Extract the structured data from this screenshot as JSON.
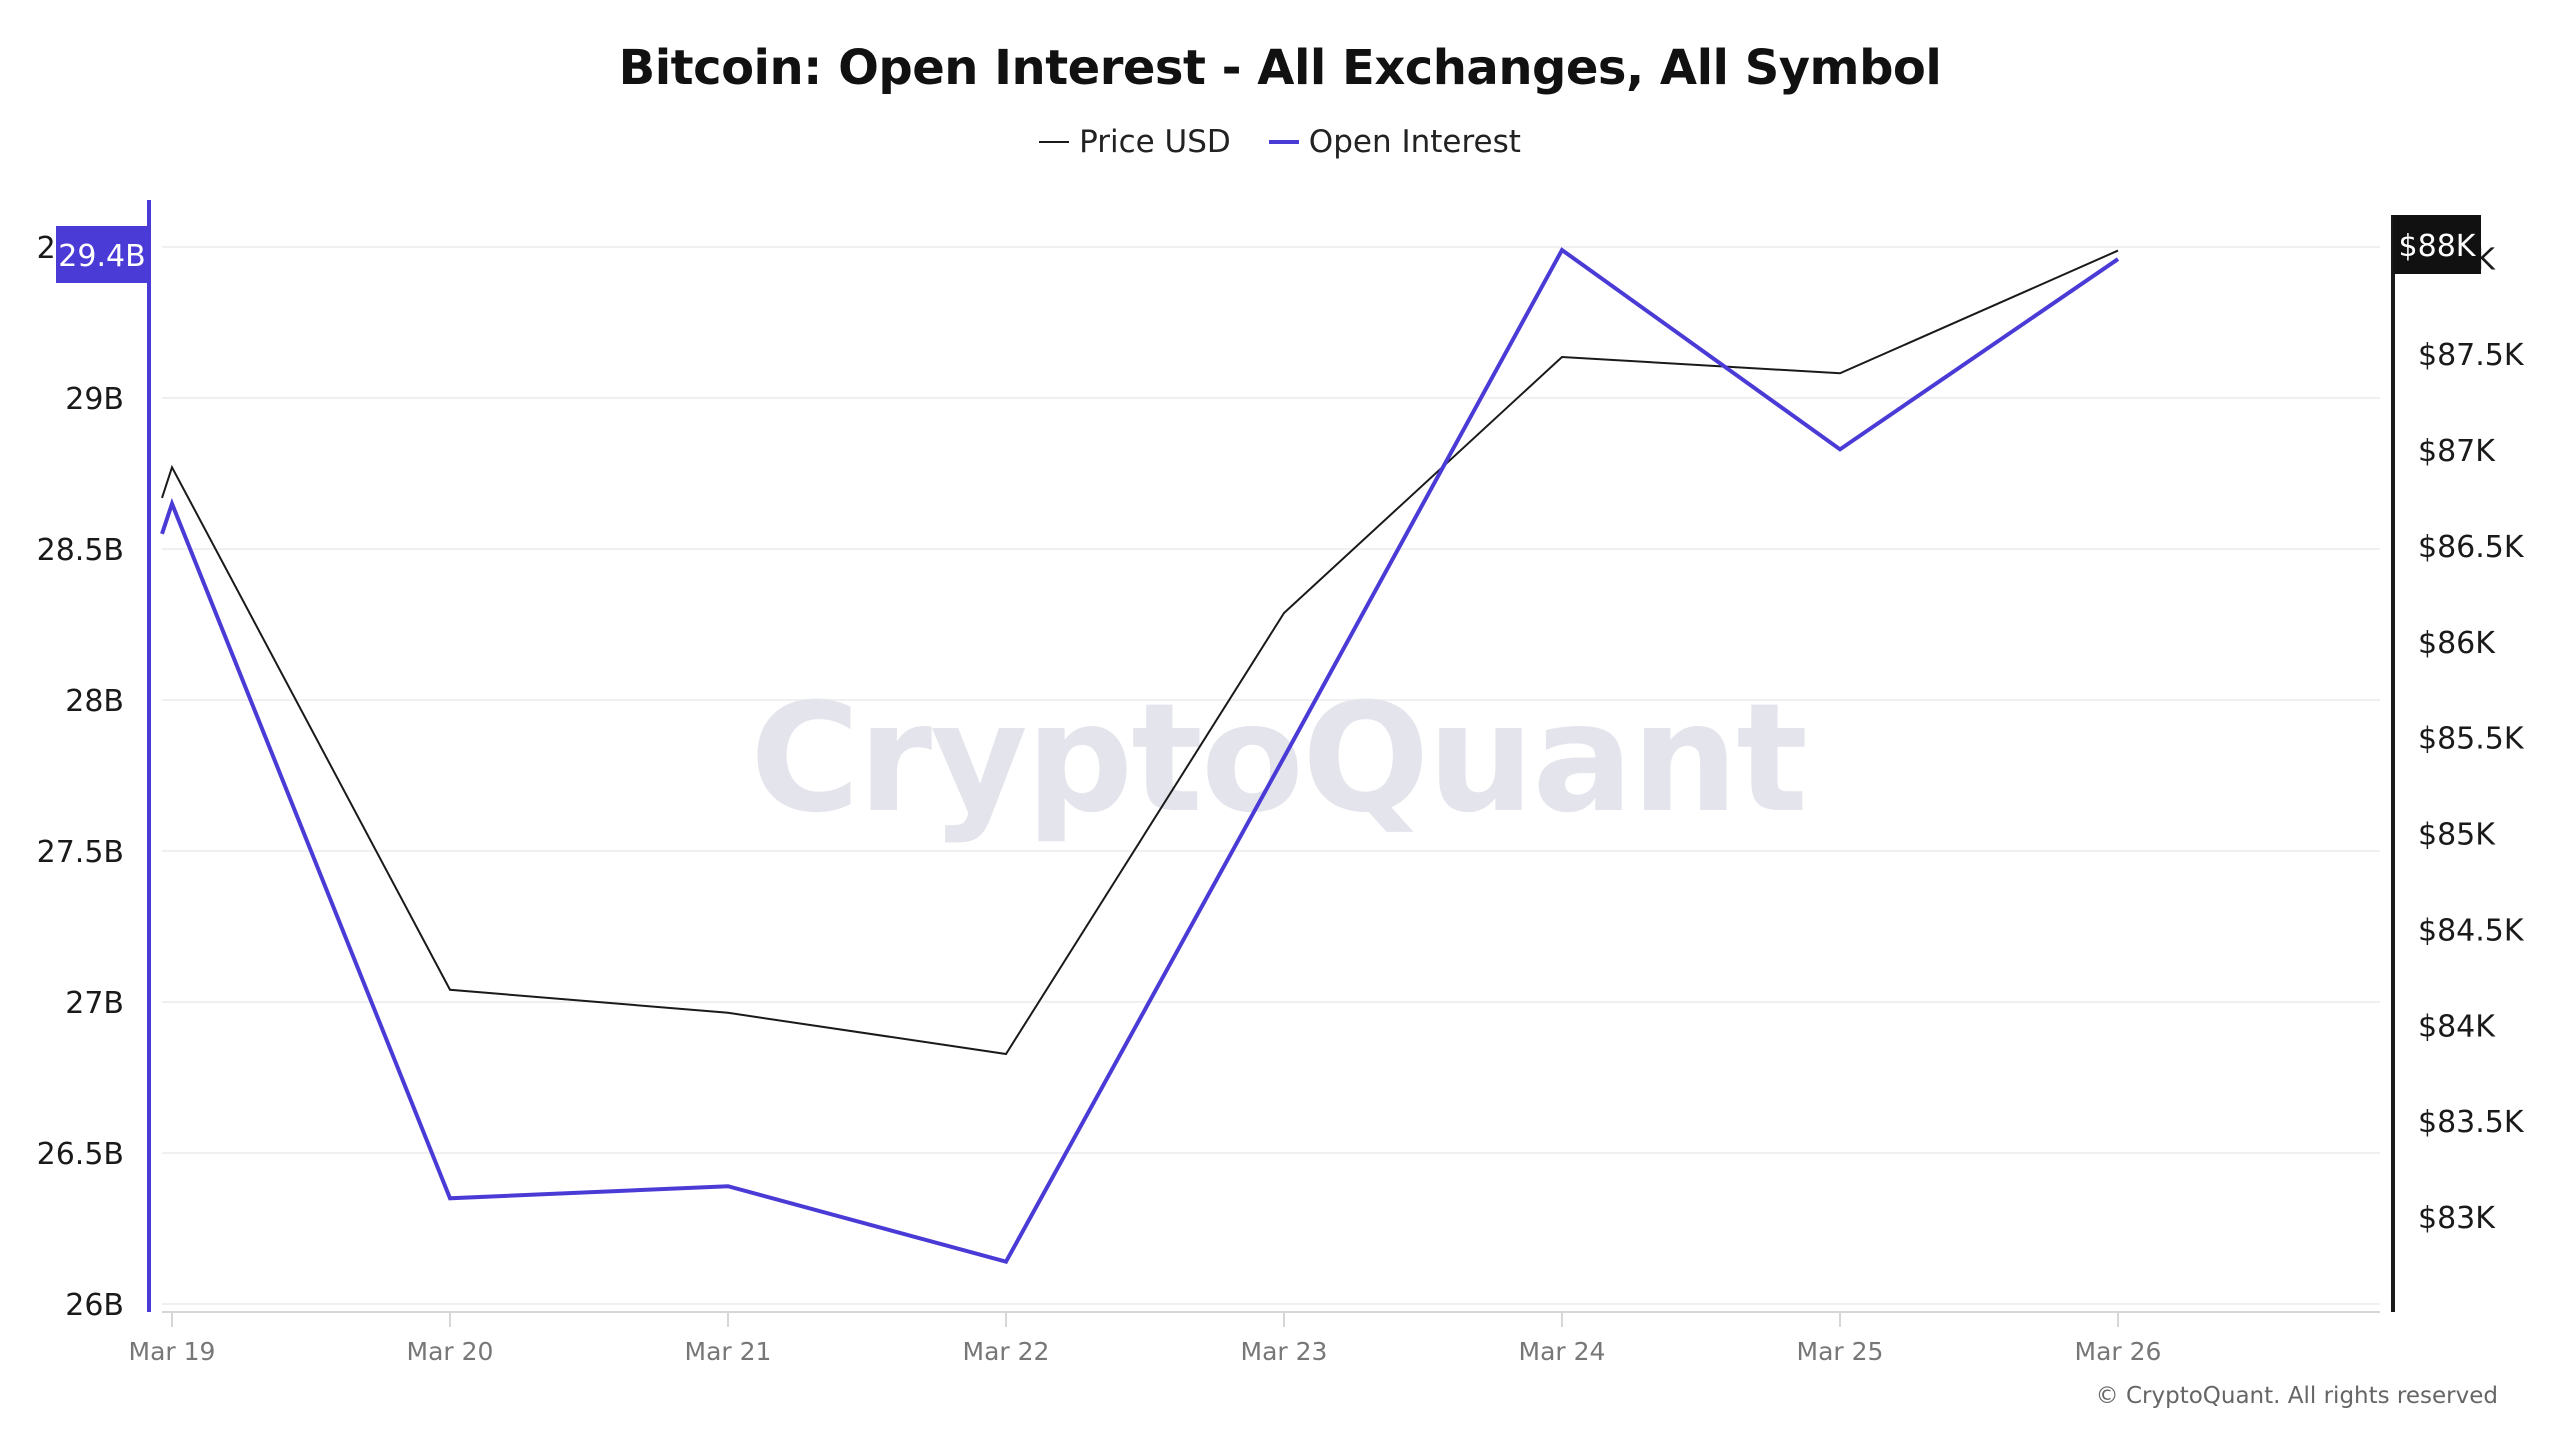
{
  "title": "Bitcoin: Open Interest - All Exchanges, All Symbol",
  "legend": [
    {
      "label": "Price USD",
      "color": "#1a1a1a"
    },
    {
      "label": "Open Interest",
      "color": "#4b3bd6"
    }
  ],
  "watermark": "CryptoQuant",
  "copyright": "© CryptoQuant. All rights reserved",
  "badges": {
    "left": {
      "label": "29.4B",
      "color": "#4b3bd6"
    },
    "right": {
      "label": "$88K",
      "color": "#111111"
    }
  },
  "chart_data": {
    "type": "line",
    "title": "Bitcoin: Open Interest - All Exchanges, All Symbol",
    "xlabel": "",
    "categories": [
      "Mar 19",
      "Mar 20",
      "Mar 21",
      "Mar 22",
      "Mar 23",
      "Mar 24",
      "Mar 25",
      "Mar 26"
    ],
    "series": [
      {
        "name": "Price USD",
        "axis": "right",
        "color": "#1a1a1a",
        "values": [
          86910,
          84185,
          84065,
          83850,
          86150,
          87485,
          87400,
          88040
        ],
        "start_value": 86750
      },
      {
        "name": "Open Interest",
        "axis": "left",
        "color": "#4b3bd6",
        "unit": "B",
        "values": [
          28.65,
          26.35,
          26.39,
          26.14,
          27.81,
          29.49,
          28.83,
          29.46
        ],
        "start_value": 28.55
      }
    ],
    "left_axis": {
      "ylim": [
        26,
        29.5
      ],
      "ticks": [
        "26B",
        "26.5B",
        "27B",
        "27.5B",
        "28B",
        "28.5B",
        "29B",
        "29.5B"
      ],
      "tick_values": [
        26,
        26.5,
        27,
        27.5,
        28,
        28.5,
        29,
        29.5
      ]
    },
    "right_axis": {
      "ylim": [
        82500,
        88000
      ],
      "ticks": [
        "$83K",
        "$83.5K",
        "$84K",
        "$84.5K",
        "$85K",
        "$85.5K",
        "$86K",
        "$86.5K",
        "$87K",
        "$87.5K",
        "$88K"
      ],
      "tick_values": [
        83000,
        83500,
        84000,
        84500,
        85000,
        85500,
        86000,
        86500,
        87000,
        87500,
        88000
      ]
    },
    "grid": true,
    "legend_position": "top"
  }
}
